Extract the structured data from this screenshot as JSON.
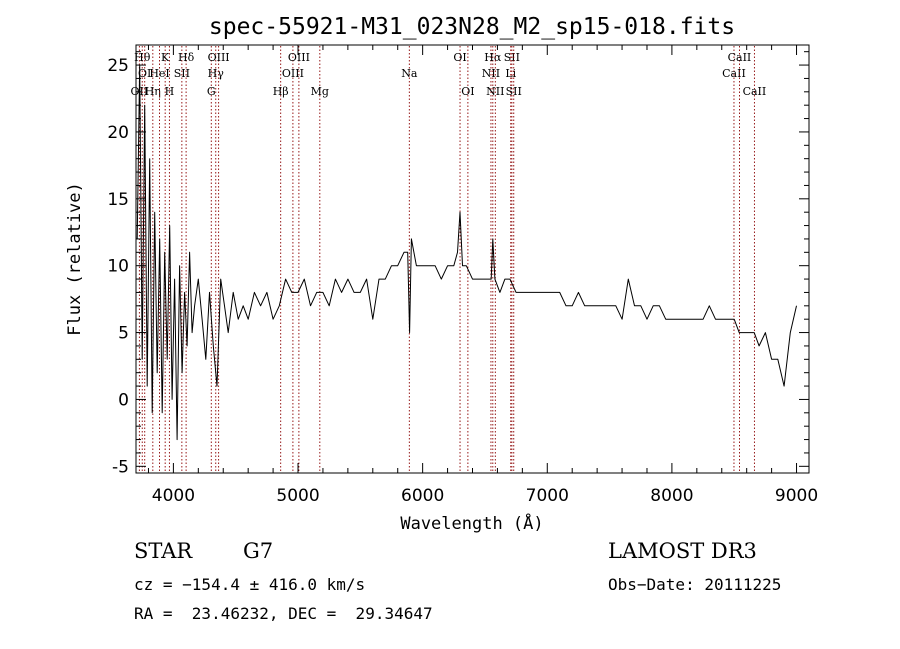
{
  "chart_data": {
    "type": "line",
    "title": "spec-55921-M31_023N28_M2_sp15-018.fits",
    "xlabel": "Wavelength (Å)",
    "ylabel": "Flux (relative)",
    "xlim": [
      3700,
      9100
    ],
    "ylim": [
      -5.5,
      26.5
    ],
    "xticks": [
      4000,
      5000,
      6000,
      7000,
      8000,
      9000
    ],
    "yticks": [
      -5,
      0,
      5,
      10,
      15,
      20,
      25
    ],
    "grid": false,
    "legend": "none",
    "line_color": "#000000",
    "marker_color": "#8b0000",
    "series": [
      {
        "x": [
          3710,
          3730,
          3750,
          3770,
          3790,
          3810,
          3830,
          3850,
          3870,
          3890,
          3910,
          3930,
          3950,
          3970,
          3990,
          4010,
          4030,
          4050,
          4070,
          4090,
          4110,
          4130,
          4150,
          4170,
          4200,
          4230,
          4260,
          4290,
          4320,
          4350,
          4380,
          4410,
          4440,
          4480,
          4520,
          4560,
          4600,
          4650,
          4700,
          4750,
          4800,
          4850,
          4900,
          4950,
          5000,
          5050,
          5100,
          5150,
          5200,
          5250,
          5300,
          5350,
          5400,
          5450,
          5500,
          5550,
          5600,
          5650,
          5700,
          5750,
          5800,
          5850,
          5880,
          5895,
          5910,
          5950,
          6000,
          6050,
          6100,
          6150,
          6200,
          6250,
          6280,
          6300,
          6320,
          6350,
          6400,
          6450,
          6500,
          6550,
          6563,
          6580,
          6620,
          6660,
          6700,
          6750,
          6800,
          6850,
          6900,
          6950,
          7000,
          7050,
          7100,
          7150,
          7200,
          7250,
          7300,
          7350,
          7400,
          7450,
          7500,
          7550,
          7600,
          7650,
          7700,
          7750,
          7800,
          7850,
          7900,
          7950,
          8000,
          8050,
          8100,
          8150,
          8200,
          8250,
          8300,
          8350,
          8400,
          8450,
          8500,
          8540,
          8580,
          8620,
          8660,
          8700,
          8750,
          8800,
          8850,
          8900,
          8950,
          9000
        ],
        "y": [
          12,
          25,
          3,
          22,
          1,
          18,
          -1,
          14,
          2,
          12,
          -1,
          11,
          3,
          13,
          0,
          9,
          -3,
          10,
          2,
          8,
          4,
          11,
          5,
          7,
          9,
          6,
          3,
          8,
          4,
          1,
          9,
          7,
          5,
          8,
          6,
          7,
          6,
          8,
          7,
          8,
          6,
          7,
          9,
          8,
          8,
          9,
          7,
          8,
          8,
          7,
          9,
          8,
          9,
          8,
          8,
          9,
          6,
          9,
          9,
          10,
          10,
          11,
          11,
          5,
          12,
          10,
          10,
          10,
          10,
          9,
          10,
          10,
          11,
          14,
          10,
          10,
          9,
          9,
          9,
          9,
          12,
          9,
          8,
          9,
          9,
          8,
          8,
          8,
          8,
          8,
          8,
          8,
          8,
          7,
          7,
          8,
          7,
          7,
          7,
          7,
          7,
          7,
          6,
          9,
          7,
          7,
          6,
          7,
          7,
          6,
          6,
          6,
          6,
          6,
          6,
          6,
          7,
          6,
          6,
          6,
          6,
          5,
          5,
          5,
          5,
          4,
          5,
          3,
          3,
          1,
          5,
          7
        ]
      }
    ],
    "lines": [
      {
        "x": 3727,
        "label": "OII",
        "row": 3
      },
      {
        "x": 3750,
        "label": "Hθ",
        "row": 1
      },
      {
        "x": 3770,
        "label": "OI",
        "row": 2
      },
      {
        "x": 3835,
        "label": "Hη",
        "row": 3
      },
      {
        "x": 3889,
        "label": "HeI",
        "row": 2
      },
      {
        "x": 3934,
        "label": "K",
        "row": 1
      },
      {
        "x": 3968,
        "label": "H",
        "row": 3
      },
      {
        "x": 4068,
        "label": "SII",
        "row": 2
      },
      {
        "x": 4102,
        "label": "Hδ",
        "row": 1
      },
      {
        "x": 4304,
        "label": "G",
        "row": 3
      },
      {
        "x": 4340,
        "label": "Hγ",
        "row": 2
      },
      {
        "x": 4363,
        "label": "OIII",
        "row": 1
      },
      {
        "x": 4861,
        "label": "Hβ",
        "row": 3
      },
      {
        "x": 4959,
        "label": "OIII",
        "row": 2
      },
      {
        "x": 5007,
        "label": "OIII",
        "row": 1
      },
      {
        "x": 5175,
        "label": "Mg",
        "row": 3
      },
      {
        "x": 5893,
        "label": "Na",
        "row": 2
      },
      {
        "x": 6300,
        "label": "OI",
        "row": 1
      },
      {
        "x": 6363,
        "label": "OI",
        "row": 3
      },
      {
        "x": 6548,
        "label": "NII",
        "row": 2
      },
      {
        "x": 6563,
        "label": "Hα",
        "row": 1
      },
      {
        "x": 6583,
        "label": "NII",
        "row": 3
      },
      {
        "x": 6707,
        "label": "Li",
        "row": 2
      },
      {
        "x": 6716,
        "label": "SII",
        "row": 1
      },
      {
        "x": 6731,
        "label": "SII",
        "row": 3
      },
      {
        "x": 8498,
        "label": "CaII",
        "row": 2
      },
      {
        "x": 8542,
        "label": "CaII",
        "row": 1
      },
      {
        "x": 8662,
        "label": "CaII",
        "row": 3
      }
    ]
  },
  "info": {
    "class": "STAR",
    "subclass": "G7",
    "survey": "LAMOST DR3",
    "cz": "cz = −154.4 ± 416.0 km/s",
    "obs_date": "Obs−Date: 20111225",
    "radec": "RA =  23.46232, DEC =  29.34647"
  }
}
